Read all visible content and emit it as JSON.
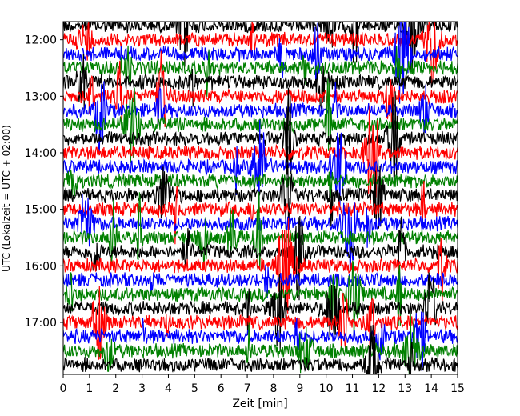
{
  "chart_data": {
    "type": "line",
    "title": "",
    "xlabel": "Zeit  [min]",
    "ylabel": "UTC (Lokalzeit = UTC + 02:00)",
    "xlim": [
      0,
      15
    ],
    "x_ticks": [
      0,
      1,
      2,
      3,
      4,
      5,
      6,
      7,
      8,
      9,
      10,
      11,
      12,
      13,
      14,
      15
    ],
    "y_tick_labels": [
      "12:00",
      "13:00",
      "14:00",
      "15:00",
      "16:00",
      "17:00"
    ],
    "y_tick_times": [
      "12:00",
      "13:00",
      "14:00",
      "15:00",
      "16:00",
      "17:00"
    ],
    "trace_start": "11:45",
    "trace_end": "17:45",
    "trace_interval_min": 15,
    "trace_duration_min": 15,
    "trace_colors": [
      "#000000",
      "#ff0000",
      "#0000ff",
      "#008000"
    ],
    "grid": false,
    "legend": "none"
  }
}
